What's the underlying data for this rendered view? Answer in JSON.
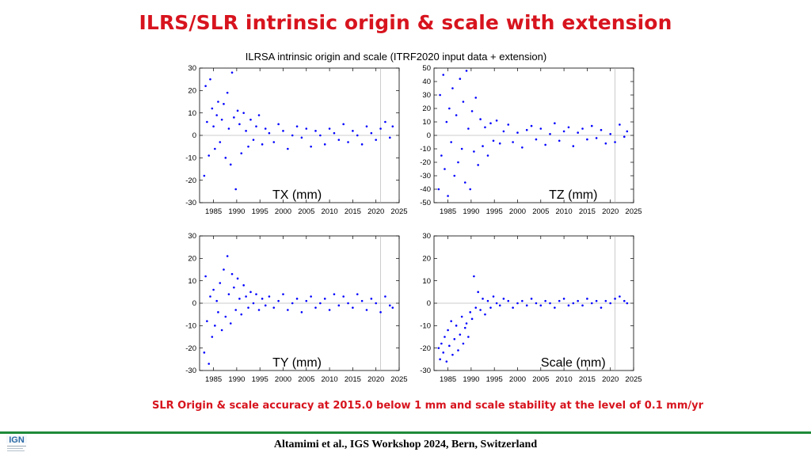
{
  "slide_title": "ILRS/SLR intrinsic origin & scale with extension",
  "figure_title": "ILRSA intrinsic origin and scale (ITRF2020 input data + extension)",
  "caption": "SLR Origin & scale accuracy at 2015.0 below 1 mm and scale stability at the level of 0.1 mm/yr",
  "footer": "Altamimi et al., IGS Workshop 2024, Bern, Switzerland",
  "logo_text": "IGN",
  "colors": {
    "title": "#d7141e",
    "points": "#0000ff",
    "footer_line": "#1f8a3a",
    "logo": "#2d6aa6"
  },
  "chart_data": [
    {
      "type": "scatter",
      "label": "TX (mm)",
      "xlabel": "",
      "ylabel": "",
      "xlim": [
        1982,
        2025
      ],
      "ylim": [
        -30,
        30
      ],
      "xticks": [
        1985,
        1990,
        1995,
        2000,
        2005,
        2010,
        2015,
        2020,
        2025
      ],
      "yticks": [
        -30,
        -20,
        -10,
        0,
        10,
        20,
        30
      ],
      "reference_year": 2021,
      "label_position": "bottom-center",
      "series": [
        {
          "name": "TX",
          "x": [
            1983.0,
            1983.3,
            1983.6,
            1984.0,
            1984.3,
            1984.7,
            1985.0,
            1985.3,
            1985.7,
            1986.0,
            1986.4,
            1986.8,
            1987.2,
            1987.6,
            1988.0,
            1988.3,
            1988.7,
            1989.0,
            1989.4,
            1989.8,
            1990.2,
            1990.6,
            1991.0,
            1991.5,
            1992.0,
            1992.5,
            1993.0,
            1993.6,
            1994.2,
            1994.8,
            1995.5,
            1996.2,
            1997.0,
            1998.0,
            1999.0,
            2000.0,
            2001.0,
            2002.0,
            2003.0,
            2004.0,
            2005.0,
            2006.0,
            2007.0,
            2008.0,
            2009.0,
            2010.0,
            2011.0,
            2012.0,
            2013.0,
            2014.0,
            2015.0,
            2016.0,
            2017.0,
            2018.0,
            2019.0,
            2020.0,
            2021.0,
            2022.0,
            2023.0,
            2023.6
          ],
          "y": [
            -18,
            22,
            6,
            -9,
            25,
            12,
            4,
            -6,
            9,
            15,
            -3,
            7,
            14,
            -10,
            19,
            3,
            -13,
            28,
            8,
            -24,
            11,
            5,
            -8,
            10,
            2,
            -5,
            7,
            -2,
            4,
            9,
            -4,
            3,
            1,
            -3,
            5,
            2,
            -6,
            0,
            4,
            -1,
            3,
            -5,
            2,
            0,
            -4,
            3,
            1,
            -2,
            5,
            -3,
            2,
            0,
            -4,
            4,
            1,
            -2,
            3,
            6,
            -1,
            4
          ]
        }
      ]
    },
    {
      "type": "scatter",
      "label": "TZ (mm)",
      "xlabel": "",
      "ylabel": "",
      "xlim": [
        1982,
        2025
      ],
      "ylim": [
        -50,
        50
      ],
      "xticks": [
        1985,
        1990,
        1995,
        2000,
        2005,
        2010,
        2015,
        2020,
        2025
      ],
      "yticks": [
        -50,
        -40,
        -30,
        -20,
        -10,
        0,
        10,
        20,
        30,
        40,
        50
      ],
      "reference_year": 2021,
      "label_position": "bottom-right",
      "series": [
        {
          "name": "TZ",
          "x": [
            1983.0,
            1983.3,
            1983.6,
            1984.0,
            1984.3,
            1984.7,
            1985.0,
            1985.3,
            1985.7,
            1986.0,
            1986.4,
            1986.8,
            1987.2,
            1987.6,
            1988.0,
            1988.3,
            1988.7,
            1989.0,
            1989.4,
            1989.8,
            1990.2,
            1990.6,
            1991.0,
            1991.5,
            1992.0,
            1992.5,
            1993.0,
            1993.6,
            1994.2,
            1994.8,
            1995.5,
            1996.2,
            1997.0,
            1998.0,
            1999.0,
            2000.0,
            2001.0,
            2002.0,
            2003.0,
            2004.0,
            2005.0,
            2006.0,
            2007.0,
            2008.0,
            2009.0,
            2010.0,
            2011.0,
            2012.0,
            2013.0,
            2014.0,
            2015.0,
            2016.0,
            2017.0,
            2018.0,
            2019.0,
            2020.0,
            2021.0,
            2022.0,
            2023.0,
            2023.6
          ],
          "y": [
            -40,
            30,
            -15,
            45,
            -25,
            10,
            -45,
            20,
            -5,
            35,
            -30,
            15,
            -20,
            42,
            -10,
            25,
            -35,
            48,
            5,
            -40,
            18,
            -12,
            28,
            -22,
            12,
            -8,
            6,
            -15,
            9,
            -4,
            11,
            -6,
            3,
            8,
            -5,
            2,
            -9,
            4,
            7,
            -3,
            5,
            -7,
            1,
            9,
            -4,
            3,
            6,
            -8,
            2,
            5,
            -3,
            7,
            -2,
            4,
            -6,
            1,
            -5,
            8,
            -1,
            3
          ]
        }
      ]
    },
    {
      "type": "scatter",
      "label": "TY (mm)",
      "xlabel": "",
      "ylabel": "",
      "xlim": [
        1982,
        2025
      ],
      "ylim": [
        -30,
        30
      ],
      "xticks": [
        1985,
        1990,
        1995,
        2000,
        2005,
        2010,
        2015,
        2020,
        2025
      ],
      "yticks": [
        -30,
        -20,
        -10,
        0,
        10,
        20,
        30
      ],
      "reference_year": 2021,
      "label_position": "bottom-center",
      "series": [
        {
          "name": "TY",
          "x": [
            1983.0,
            1983.3,
            1983.6,
            1984.0,
            1984.3,
            1984.7,
            1985.0,
            1985.3,
            1985.7,
            1986.0,
            1986.4,
            1986.8,
            1987.2,
            1987.6,
            1988.0,
            1988.3,
            1988.7,
            1989.0,
            1989.4,
            1989.8,
            1990.2,
            1990.6,
            1991.0,
            1991.5,
            1992.0,
            1992.5,
            1993.0,
            1993.6,
            1994.2,
            1994.8,
            1995.5,
            1996.2,
            1997.0,
            1998.0,
            1999.0,
            2000.0,
            2001.0,
            2002.0,
            2003.0,
            2004.0,
            2005.0,
            2006.0,
            2007.0,
            2008.0,
            2009.0,
            2010.0,
            2011.0,
            2012.0,
            2013.0,
            2014.0,
            2015.0,
            2016.0,
            2017.0,
            2018.0,
            2019.0,
            2020.0,
            2021.0,
            2022.0,
            2023.0,
            2023.6
          ],
          "y": [
            -22,
            12,
            -8,
            -27,
            3,
            -15,
            6,
            -10,
            1,
            -4,
            9,
            -12,
            15,
            -6,
            21,
            4,
            -9,
            13,
            7,
            -3,
            11,
            2,
            -5,
            8,
            3,
            -2,
            5,
            0,
            4,
            -3,
            2,
            -1,
            3,
            -2,
            1,
            4,
            -3,
            0,
            2,
            -4,
            1,
            3,
            -2,
            0,
            2,
            -3,
            4,
            -1,
            3,
            0,
            -2,
            4,
            1,
            -3,
            2,
            0,
            -4,
            3,
            -1,
            -2
          ]
        }
      ]
    },
    {
      "type": "scatter",
      "label": "Scale (mm)",
      "xlabel": "",
      "ylabel": "",
      "xlim": [
        1982,
        2025
      ],
      "ylim": [
        -30,
        30
      ],
      "xticks": [
        1985,
        1990,
        1995,
        2000,
        2005,
        2010,
        2015,
        2020,
        2025
      ],
      "yticks": [
        -30,
        -20,
        -10,
        0,
        10,
        20,
        30
      ],
      "reference_year": 2021,
      "label_position": "bottom-right",
      "series": [
        {
          "name": "Scale",
          "x": [
            1983.0,
            1983.3,
            1983.6,
            1984.0,
            1984.3,
            1984.7,
            1985.0,
            1985.3,
            1985.7,
            1986.0,
            1986.4,
            1986.8,
            1987.2,
            1987.6,
            1988.0,
            1988.3,
            1988.7,
            1989.0,
            1989.4,
            1989.8,
            1990.2,
            1990.6,
            1991.0,
            1991.5,
            1992.0,
            1992.5,
            1993.0,
            1993.6,
            1994.2,
            1994.8,
            1995.5,
            1996.2,
            1997.0,
            1998.0,
            1999.0,
            2000.0,
            2001.0,
            2002.0,
            2003.0,
            2004.0,
            2005.0,
            2006.0,
            2007.0,
            2008.0,
            2009.0,
            2010.0,
            2011.0,
            2012.0,
            2013.0,
            2014.0,
            2015.0,
            2016.0,
            2017.0,
            2018.0,
            2019.0,
            2020.0,
            2021.0,
            2022.0,
            2023.0,
            2023.6
          ],
          "y": [
            -20,
            -25,
            -18,
            -22,
            -15,
            -26,
            -12,
            -19,
            -8,
            -23,
            -16,
            -10,
            -21,
            -14,
            -6,
            -18,
            -11,
            -9,
            -15,
            -4,
            -7,
            12,
            -2,
            5,
            -3,
            2,
            -5,
            1,
            -2,
            3,
            0,
            -1,
            2,
            1,
            -2,
            0,
            1,
            -1,
            2,
            0,
            -1,
            1,
            0,
            -2,
            1,
            2,
            -1,
            0,
            1,
            -1,
            2,
            0,
            1,
            -2,
            1,
            0,
            2,
            3,
            1,
            0
          ]
        }
      ]
    }
  ]
}
